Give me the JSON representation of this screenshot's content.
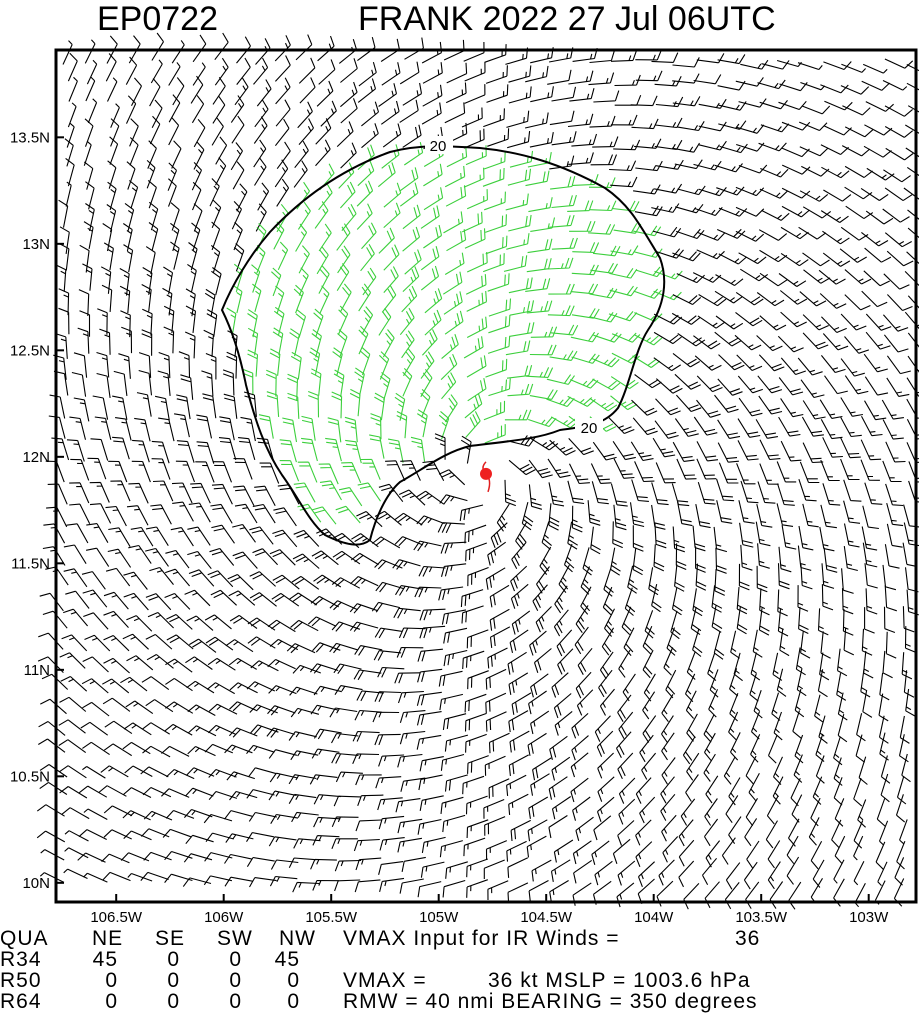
{
  "title": {
    "left": "EP0722",
    "right": "FRANK 2022 27 Jul 06UTC"
  },
  "map": {
    "xlim": [
      -106.78,
      -102.78
    ],
    "ylim": [
      9.91,
      13.91
    ],
    "xticks": [
      {
        "value": -106.5,
        "label": "106.5W"
      },
      {
        "value": -106,
        "label": "106W"
      },
      {
        "value": -105.5,
        "label": "105.5W"
      },
      {
        "value": -105,
        "label": "105W"
      },
      {
        "value": -104.5,
        "label": "104.5W"
      },
      {
        "value": -104,
        "label": "104W"
      },
      {
        "value": -103.5,
        "label": "103.5W"
      },
      {
        "value": -103,
        "label": "103W"
      }
    ],
    "yticks": [
      {
        "value": 10,
        "label": "10N"
      },
      {
        "value": 10.5,
        "label": "10.5N"
      },
      {
        "value": 11,
        "label": "11N"
      },
      {
        "value": 11.5,
        "label": "11.5N"
      },
      {
        "value": 12,
        "label": "12N"
      },
      {
        "value": 12.5,
        "label": "12.5N"
      },
      {
        "value": 13,
        "label": "13N"
      },
      {
        "value": 13.5,
        "label": "13.5N"
      }
    ],
    "contour_labels": [
      "20",
      "20"
    ],
    "center": {
      "lon": -104.78,
      "lat": 11.92
    }
  },
  "table": {
    "header": [
      "QUA",
      "NE",
      "SE",
      "SW",
      "NW"
    ],
    "rows": [
      [
        "R34",
        "45",
        "0",
        "0",
        "45"
      ],
      [
        "R50",
        "0",
        "0",
        "0",
        "0"
      ],
      [
        "R64",
        "0",
        "0",
        "0",
        "0"
      ]
    ],
    "notes": [
      "VMAX Input for IR Winds =",
      "36",
      "VMAX =",
      "36 kt MSLP = 1003.6 hPa",
      "RMW = 40 nmi BEARING = 350 degrees"
    ]
  }
}
